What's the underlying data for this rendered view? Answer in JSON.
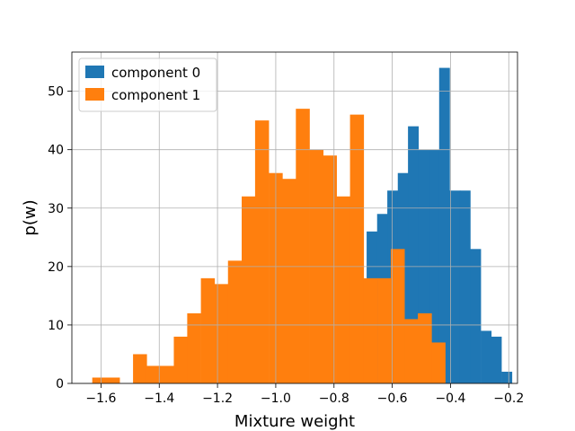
{
  "chart_data": {
    "type": "bar",
    "subtype": "histogram",
    "title": "",
    "xlabel": "Mixture weight",
    "ylabel": "p(w)",
    "xlim": [
      -1.7,
      -0.17
    ],
    "ylim": [
      0,
      56.7
    ],
    "xticks": [
      -1.6,
      -1.4,
      -1.2,
      -1.0,
      -0.8,
      -0.6,
      -0.4,
      -0.2
    ],
    "xtick_labels": [
      "−1.6",
      "−1.4",
      "−1.2",
      "−1.0",
      "−0.8",
      "−0.6",
      "−0.4",
      "−0.2"
    ],
    "yticks": [
      0,
      10,
      20,
      30,
      40,
      50
    ],
    "ytick_labels": [
      "0",
      "10",
      "20",
      "30",
      "40",
      "50"
    ],
    "grid": true,
    "legend_position": "top-left",
    "series": [
      {
        "name": "component 0",
        "color": "#1f77b4",
        "bin_width": 0.0356,
        "bins": [
          {
            "x0": -0.688,
            "count": 26
          },
          {
            "x0": -0.652,
            "count": 29
          },
          {
            "x0": -0.617,
            "count": 33
          },
          {
            "x0": -0.581,
            "count": 36
          },
          {
            "x0": -0.546,
            "count": 44
          },
          {
            "x0": -0.51,
            "count": 40
          },
          {
            "x0": -0.474,
            "count": 40
          },
          {
            "x0": -0.439,
            "count": 54
          },
          {
            "x0": -0.403,
            "count": 33
          },
          {
            "x0": -0.368,
            "count": 33
          },
          {
            "x0": -0.332,
            "count": 23
          },
          {
            "x0": -0.296,
            "count": 9
          },
          {
            "x0": -0.261,
            "count": 8
          },
          {
            "x0": -0.225,
            "count": 2
          }
        ]
      },
      {
        "name": "component 1",
        "color": "#ff7f0e",
        "bin_width": 0.0466,
        "bins": [
          {
            "x0": -1.63,
            "count": 1
          },
          {
            "x0": -1.583,
            "count": 1
          },
          {
            "x0": -1.537,
            "count": 0
          },
          {
            "x0": -1.49,
            "count": 5
          },
          {
            "x0": -1.444,
            "count": 3
          },
          {
            "x0": -1.397,
            "count": 3
          },
          {
            "x0": -1.35,
            "count": 8
          },
          {
            "x0": -1.304,
            "count": 12
          },
          {
            "x0": -1.257,
            "count": 18
          },
          {
            "x0": -1.211,
            "count": 17
          },
          {
            "x0": -1.164,
            "count": 21
          },
          {
            "x0": -1.117,
            "count": 32
          },
          {
            "x0": -1.071,
            "count": 45
          },
          {
            "x0": -1.024,
            "count": 36
          },
          {
            "x0": -0.978,
            "count": 35
          },
          {
            "x0": -0.931,
            "count": 47
          },
          {
            "x0": -0.884,
            "count": 40
          },
          {
            "x0": -0.838,
            "count": 39
          },
          {
            "x0": -0.791,
            "count": 32
          },
          {
            "x0": -0.745,
            "count": 46
          },
          {
            "x0": -0.698,
            "count": 18
          },
          {
            "x0": -0.651,
            "count": 18
          },
          {
            "x0": -0.605,
            "count": 23
          },
          {
            "x0": -0.558,
            "count": 11
          },
          {
            "x0": -0.512,
            "count": 12
          },
          {
            "x0": -0.465,
            "count": 7
          }
        ]
      }
    ]
  }
}
